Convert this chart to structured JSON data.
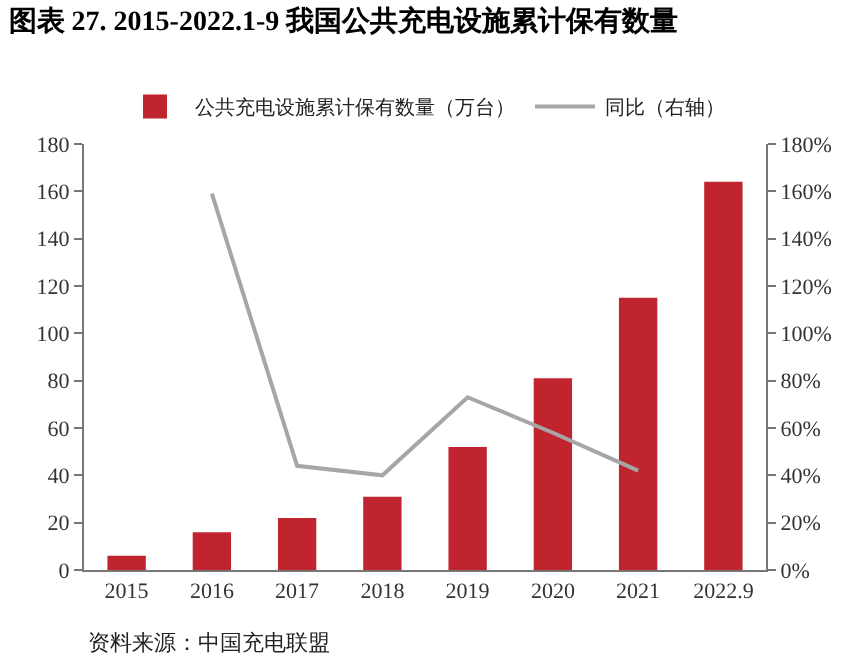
{
  "chart_data": {
    "type": "bar",
    "title": "图表 27. 2015-2022.1-9 我国公共充电设施累计保有数量",
    "categories": [
      "2015",
      "2016",
      "2017",
      "2018",
      "2019",
      "2020",
      "2021",
      "2022.9"
    ],
    "series": [
      {
        "name": "公共充电设施累计保有数量（万台）",
        "color": "#c0242f",
        "values": [
          6,
          16,
          22,
          31,
          52,
          81,
          115,
          164
        ]
      },
      {
        "name": "同比（右轴）",
        "type": "line",
        "axis": "y2",
        "color": "#a6a6a6",
        "values": [
          null,
          159,
          44,
          40,
          73,
          58,
          42,
          null
        ]
      }
    ],
    "ylim": [
      0,
      180
    ],
    "yticks": [
      0,
      20,
      40,
      60,
      80,
      100,
      120,
      140,
      160,
      180
    ],
    "y2lim": [
      0,
      180
    ],
    "y2ticks": [
      {
        "value": 0,
        "label": "0%"
      },
      {
        "value": 20,
        "label": "20%"
      },
      {
        "value": 40,
        "label": "40%"
      },
      {
        "value": 60,
        "label": "60%"
      },
      {
        "value": 80,
        "label": "80%"
      },
      {
        "value": 100,
        "label": "100%"
      },
      {
        "value": 120,
        "label": "120%"
      },
      {
        "value": 140,
        "label": "140%"
      },
      {
        "value": 160,
        "label": "160%"
      },
      {
        "value": 180,
        "label": "180%"
      }
    ],
    "grid": false,
    "legend": "top",
    "marker": "none",
    "line_style": "solid",
    "annotations": [
      "资料来源：中国充电联盟"
    ]
  }
}
